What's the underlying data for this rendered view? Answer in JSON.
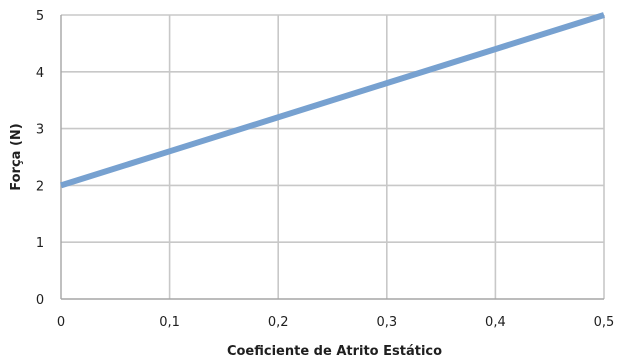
{
  "chart_data": {
    "type": "line",
    "title": "",
    "xlabel": "Coeficiente de Atrito Estático",
    "ylabel": "Força (N)",
    "xlim": [
      0,
      0.5
    ],
    "ylim": [
      0,
      5
    ],
    "x_ticks": [
      "0",
      "0,1",
      "0,2",
      "0,3",
      "0,4",
      "0,5"
    ],
    "y_ticks": [
      "0",
      "1",
      "2",
      "3",
      "4",
      "5"
    ],
    "x_tick_values": [
      0,
      0.1,
      0.2,
      0.3,
      0.4,
      0.5
    ],
    "y_tick_values": [
      0,
      1,
      2,
      3,
      4,
      5
    ],
    "grid": true,
    "legend": "none",
    "series": [
      {
        "color": "#77a1d0",
        "x": [
          0,
          0.1,
          0.2,
          0.3,
          0.4,
          0.5
        ],
        "y": [
          2.0,
          2.6,
          3.2,
          3.8,
          4.4,
          5.0
        ]
      }
    ]
  }
}
